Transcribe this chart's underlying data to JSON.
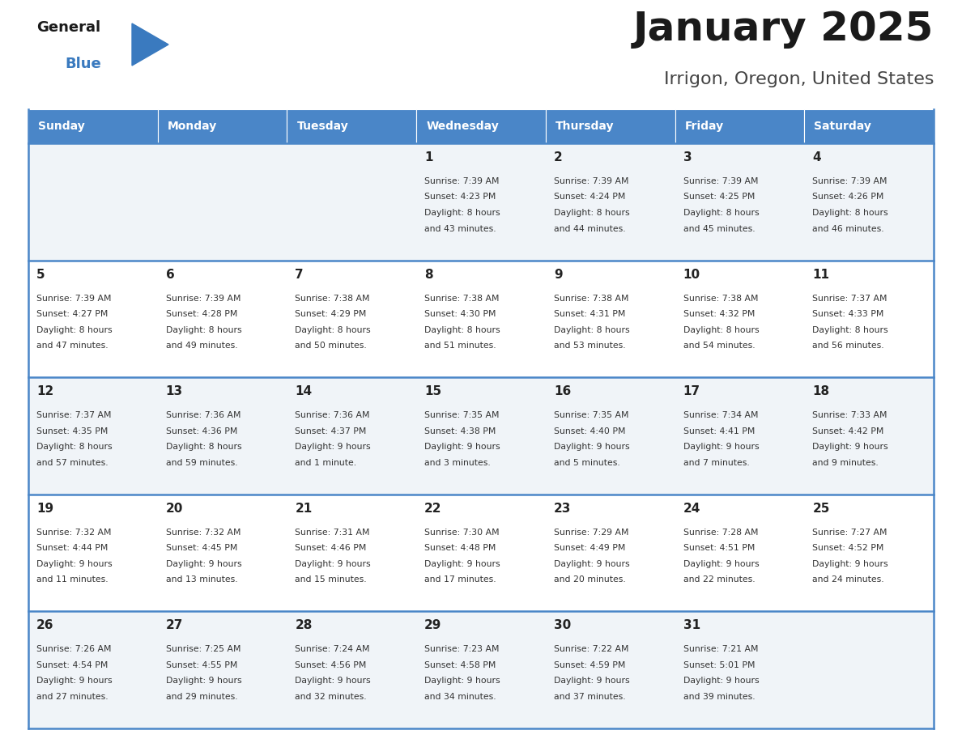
{
  "title": "January 2025",
  "subtitle": "Irrigon, Oregon, United States",
  "days_of_week": [
    "Sunday",
    "Monday",
    "Tuesday",
    "Wednesday",
    "Thursday",
    "Friday",
    "Saturday"
  ],
  "header_bg": "#4a86c8",
  "header_text": "#ffffff",
  "cell_bg_light": "#f0f4f8",
  "cell_bg_white": "#ffffff",
  "day_number_color": "#222222",
  "text_color": "#333333",
  "line_color": "#4a86c8",
  "logo_general_color": "#1a1a1a",
  "logo_blue_color": "#3a7abf",
  "calendar_data": [
    {
      "day": 1,
      "col": 3,
      "row": 0,
      "sunrise": "7:39 AM",
      "sunset": "4:23 PM",
      "daylight_hours": 8,
      "daylight_minutes": 43
    },
    {
      "day": 2,
      "col": 4,
      "row": 0,
      "sunrise": "7:39 AM",
      "sunset": "4:24 PM",
      "daylight_hours": 8,
      "daylight_minutes": 44
    },
    {
      "day": 3,
      "col": 5,
      "row": 0,
      "sunrise": "7:39 AM",
      "sunset": "4:25 PM",
      "daylight_hours": 8,
      "daylight_minutes": 45
    },
    {
      "day": 4,
      "col": 6,
      "row": 0,
      "sunrise": "7:39 AM",
      "sunset": "4:26 PM",
      "daylight_hours": 8,
      "daylight_minutes": 46
    },
    {
      "day": 5,
      "col": 0,
      "row": 1,
      "sunrise": "7:39 AM",
      "sunset": "4:27 PM",
      "daylight_hours": 8,
      "daylight_minutes": 47
    },
    {
      "day": 6,
      "col": 1,
      "row": 1,
      "sunrise": "7:39 AM",
      "sunset": "4:28 PM",
      "daylight_hours": 8,
      "daylight_minutes": 49
    },
    {
      "day": 7,
      "col": 2,
      "row": 1,
      "sunrise": "7:38 AM",
      "sunset": "4:29 PM",
      "daylight_hours": 8,
      "daylight_minutes": 50
    },
    {
      "day": 8,
      "col": 3,
      "row": 1,
      "sunrise": "7:38 AM",
      "sunset": "4:30 PM",
      "daylight_hours": 8,
      "daylight_minutes": 51
    },
    {
      "day": 9,
      "col": 4,
      "row": 1,
      "sunrise": "7:38 AM",
      "sunset": "4:31 PM",
      "daylight_hours": 8,
      "daylight_minutes": 53
    },
    {
      "day": 10,
      "col": 5,
      "row": 1,
      "sunrise": "7:38 AM",
      "sunset": "4:32 PM",
      "daylight_hours": 8,
      "daylight_minutes": 54
    },
    {
      "day": 11,
      "col": 6,
      "row": 1,
      "sunrise": "7:37 AM",
      "sunset": "4:33 PM",
      "daylight_hours": 8,
      "daylight_minutes": 56
    },
    {
      "day": 12,
      "col": 0,
      "row": 2,
      "sunrise": "7:37 AM",
      "sunset": "4:35 PM",
      "daylight_hours": 8,
      "daylight_minutes": 57
    },
    {
      "day": 13,
      "col": 1,
      "row": 2,
      "sunrise": "7:36 AM",
      "sunset": "4:36 PM",
      "daylight_hours": 8,
      "daylight_minutes": 59
    },
    {
      "day": 14,
      "col": 2,
      "row": 2,
      "sunrise": "7:36 AM",
      "sunset": "4:37 PM",
      "daylight_hours": 9,
      "daylight_minutes": 1
    },
    {
      "day": 15,
      "col": 3,
      "row": 2,
      "sunrise": "7:35 AM",
      "sunset": "4:38 PM",
      "daylight_hours": 9,
      "daylight_minutes": 3
    },
    {
      "day": 16,
      "col": 4,
      "row": 2,
      "sunrise": "7:35 AM",
      "sunset": "4:40 PM",
      "daylight_hours": 9,
      "daylight_minutes": 5
    },
    {
      "day": 17,
      "col": 5,
      "row": 2,
      "sunrise": "7:34 AM",
      "sunset": "4:41 PM",
      "daylight_hours": 9,
      "daylight_minutes": 7
    },
    {
      "day": 18,
      "col": 6,
      "row": 2,
      "sunrise": "7:33 AM",
      "sunset": "4:42 PM",
      "daylight_hours": 9,
      "daylight_minutes": 9
    },
    {
      "day": 19,
      "col": 0,
      "row": 3,
      "sunrise": "7:32 AM",
      "sunset": "4:44 PM",
      "daylight_hours": 9,
      "daylight_minutes": 11
    },
    {
      "day": 20,
      "col": 1,
      "row": 3,
      "sunrise": "7:32 AM",
      "sunset": "4:45 PM",
      "daylight_hours": 9,
      "daylight_minutes": 13
    },
    {
      "day": 21,
      "col": 2,
      "row": 3,
      "sunrise": "7:31 AM",
      "sunset": "4:46 PM",
      "daylight_hours": 9,
      "daylight_minutes": 15
    },
    {
      "day": 22,
      "col": 3,
      "row": 3,
      "sunrise": "7:30 AM",
      "sunset": "4:48 PM",
      "daylight_hours": 9,
      "daylight_minutes": 17
    },
    {
      "day": 23,
      "col": 4,
      "row": 3,
      "sunrise": "7:29 AM",
      "sunset": "4:49 PM",
      "daylight_hours": 9,
      "daylight_minutes": 20
    },
    {
      "day": 24,
      "col": 5,
      "row": 3,
      "sunrise": "7:28 AM",
      "sunset": "4:51 PM",
      "daylight_hours": 9,
      "daylight_minutes": 22
    },
    {
      "day": 25,
      "col": 6,
      "row": 3,
      "sunrise": "7:27 AM",
      "sunset": "4:52 PM",
      "daylight_hours": 9,
      "daylight_minutes": 24
    },
    {
      "day": 26,
      "col": 0,
      "row": 4,
      "sunrise": "7:26 AM",
      "sunset": "4:54 PM",
      "daylight_hours": 9,
      "daylight_minutes": 27
    },
    {
      "day": 27,
      "col": 1,
      "row": 4,
      "sunrise": "7:25 AM",
      "sunset": "4:55 PM",
      "daylight_hours": 9,
      "daylight_minutes": 29
    },
    {
      "day": 28,
      "col": 2,
      "row": 4,
      "sunrise": "7:24 AM",
      "sunset": "4:56 PM",
      "daylight_hours": 9,
      "daylight_minutes": 32
    },
    {
      "day": 29,
      "col": 3,
      "row": 4,
      "sunrise": "7:23 AM",
      "sunset": "4:58 PM",
      "daylight_hours": 9,
      "daylight_minutes": 34
    },
    {
      "day": 30,
      "col": 4,
      "row": 4,
      "sunrise": "7:22 AM",
      "sunset": "4:59 PM",
      "daylight_hours": 9,
      "daylight_minutes": 37
    },
    {
      "day": 31,
      "col": 5,
      "row": 4,
      "sunrise": "7:21 AM",
      "sunset": "5:01 PM",
      "daylight_hours": 9,
      "daylight_minutes": 39
    }
  ]
}
